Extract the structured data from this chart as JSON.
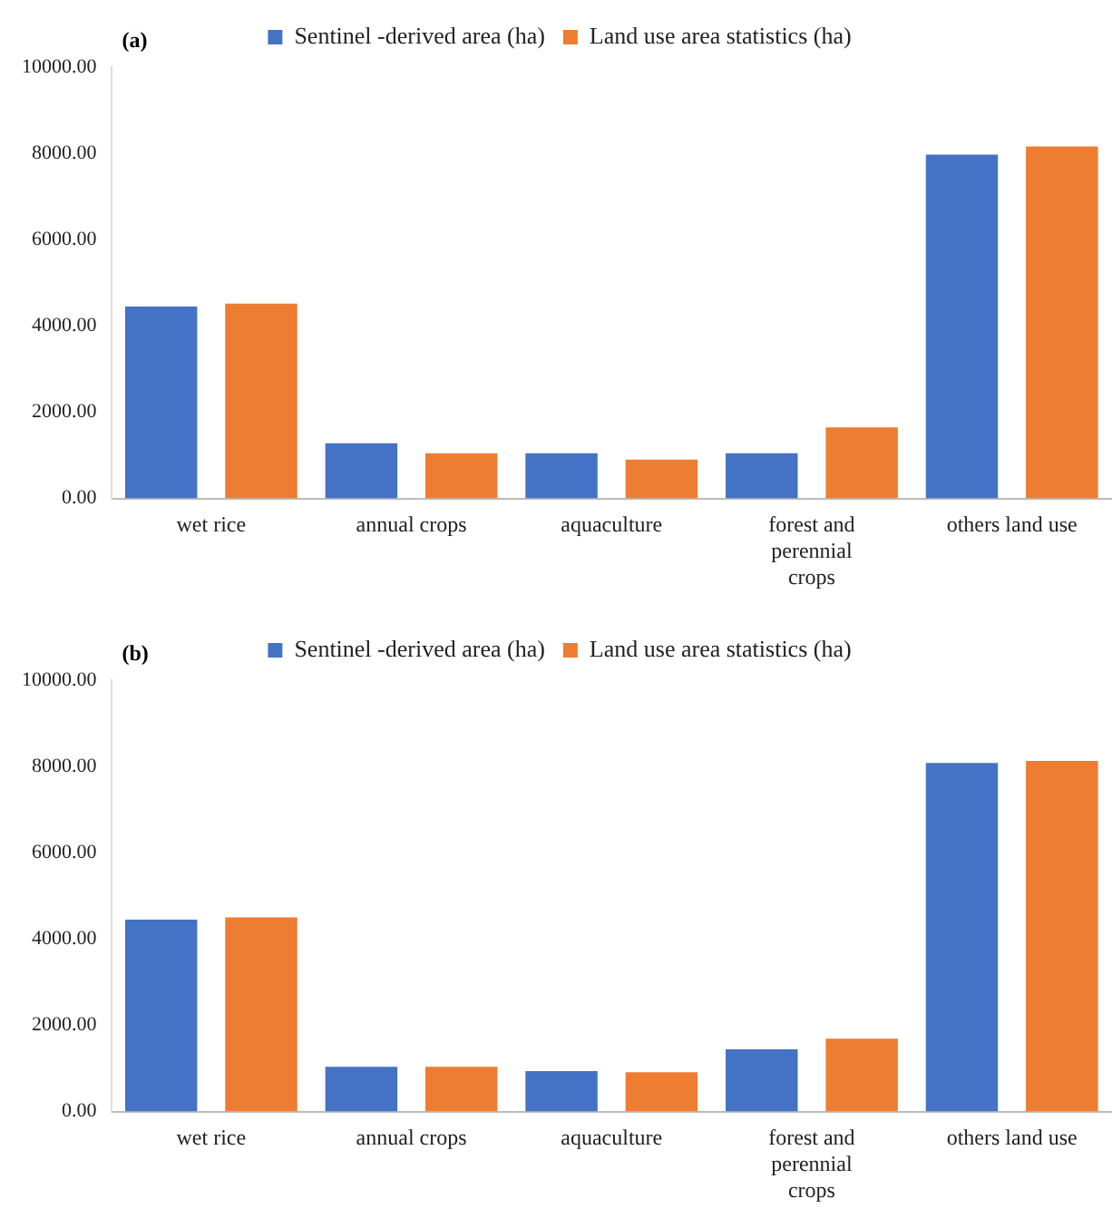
{
  "chart_data": [
    {
      "type": "bar",
      "annotations": [
        "(a)"
      ],
      "categories": [
        "wet rice",
        "annual crops",
        "aquaculture",
        "forest and perennial crops",
        "others land use"
      ],
      "series": [
        {
          "name": "Sentinel -derived area (ha)",
          "color": "#4472c4",
          "values": [
            4450,
            1280,
            1050,
            1050,
            7970
          ]
        },
        {
          "name": "Land use area statistics (ha)",
          "color": "#ed7d31",
          "values": [
            4520,
            1050,
            900,
            1650,
            8160
          ]
        }
      ],
      "ylim": [
        0,
        10000
      ],
      "yticks": [
        {
          "value": 0,
          "label": "0.00"
        },
        {
          "value": 2000,
          "label": "2000.00"
        },
        {
          "value": 4000,
          "label": "4000.00"
        },
        {
          "value": 6000,
          "label": "6000.00"
        },
        {
          "value": 8000,
          "label": "8000.00"
        },
        {
          "value": 10000,
          "label": "10000.00"
        }
      ],
      "legend": "top"
    },
    {
      "type": "bar",
      "annotations": [
        "(b)"
      ],
      "categories": [
        "wet rice",
        "annual crops",
        "aquaculture",
        "forest and perennial crops",
        "others land use"
      ],
      "series": [
        {
          "name": "Sentinel -derived area (ha)",
          "color": "#4472c4",
          "values": [
            4450,
            1040,
            940,
            1440,
            8080
          ]
        },
        {
          "name": "Land use area statistics (ha)",
          "color": "#ed7d31",
          "values": [
            4500,
            1040,
            910,
            1690,
            8130
          ]
        }
      ],
      "ylim": [
        0,
        10000
      ],
      "yticks": [
        {
          "value": 0,
          "label": "0.00"
        },
        {
          "value": 2000,
          "label": "2000.00"
        },
        {
          "value": 4000,
          "label": "4000.00"
        },
        {
          "value": 6000,
          "label": "6000.00"
        },
        {
          "value": 8000,
          "label": "8000.00"
        },
        {
          "value": 10000,
          "label": "10000.00"
        }
      ],
      "legend": "top"
    }
  ]
}
